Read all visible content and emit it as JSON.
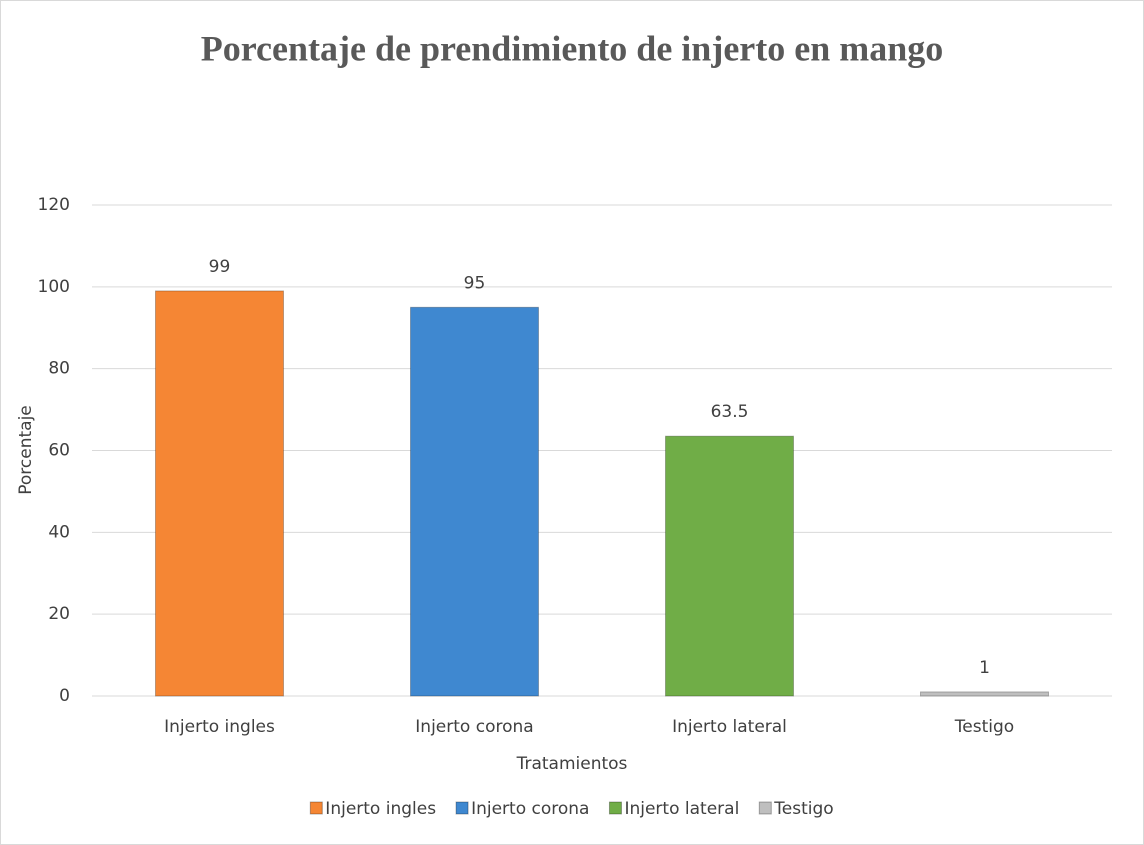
{
  "chart_data": {
    "type": "bar",
    "title": "Porcentaje de prendimiento de injerto en mango",
    "x_label": "Tratamientos",
    "y_label": "Porcentaje",
    "categories": [
      "Injerto ingles",
      "Injerto corona",
      "Injerto lateral",
      "Testigo"
    ],
    "values": [
      99,
      95,
      63.5,
      1
    ],
    "colors": [
      "#f58634",
      "#3f88d0",
      "#70ad47",
      "#bfbfbf"
    ],
    "ylim": [
      0,
      120
    ],
    "yticks": [
      0,
      20,
      40,
      60,
      80,
      100,
      120
    ],
    "grid": true,
    "legend": "bottom"
  }
}
